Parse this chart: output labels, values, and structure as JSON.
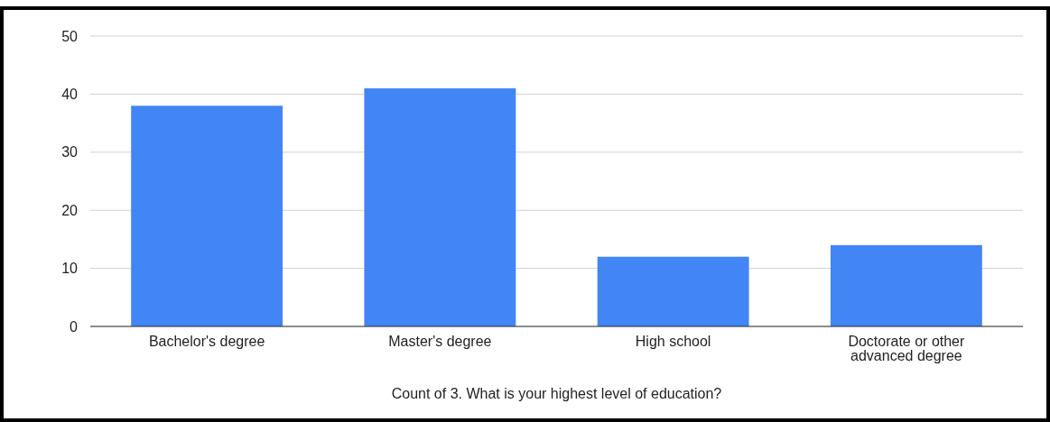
{
  "chart_data": {
    "type": "bar",
    "xlabel": "Count of 3. What is your highest level of education?",
    "categories": [
      "Bachelor's degree",
      "Master's degree",
      "High school",
      "Doctorate or other advanced degree"
    ],
    "values": [
      38,
      41,
      12,
      14
    ],
    "color": "#4285f4",
    "ylim": [
      0,
      50
    ],
    "yticks": [
      0,
      10,
      20,
      30,
      40,
      50
    ],
    "grid": "y"
  }
}
